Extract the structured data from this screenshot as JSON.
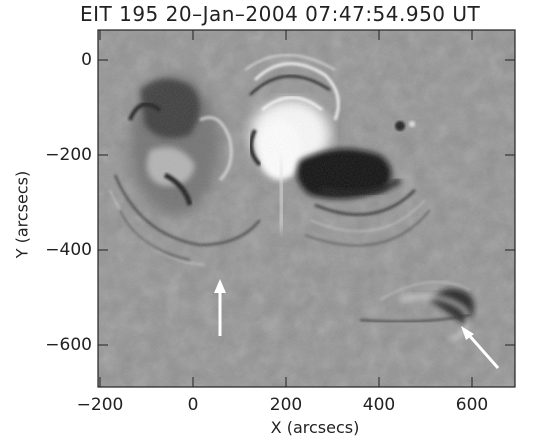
{
  "figure": {
    "title": "EIT 195 20–Jan–2004 07:47:54.950 UT",
    "x_axis_label": "X (arcsecs)",
    "y_axis_label": "Y (arcsecs)",
    "x_ticks": [
      "−200",
      "0",
      "200",
      "400",
      "600"
    ],
    "y_ticks": [
      "0",
      "−200",
      "−400",
      "−600"
    ],
    "x_range": [
      -200,
      700
    ],
    "y_range": [
      -700,
      80
    ],
    "background_color": "#8f8f8f",
    "arrow_color": "#ffffff"
  }
}
